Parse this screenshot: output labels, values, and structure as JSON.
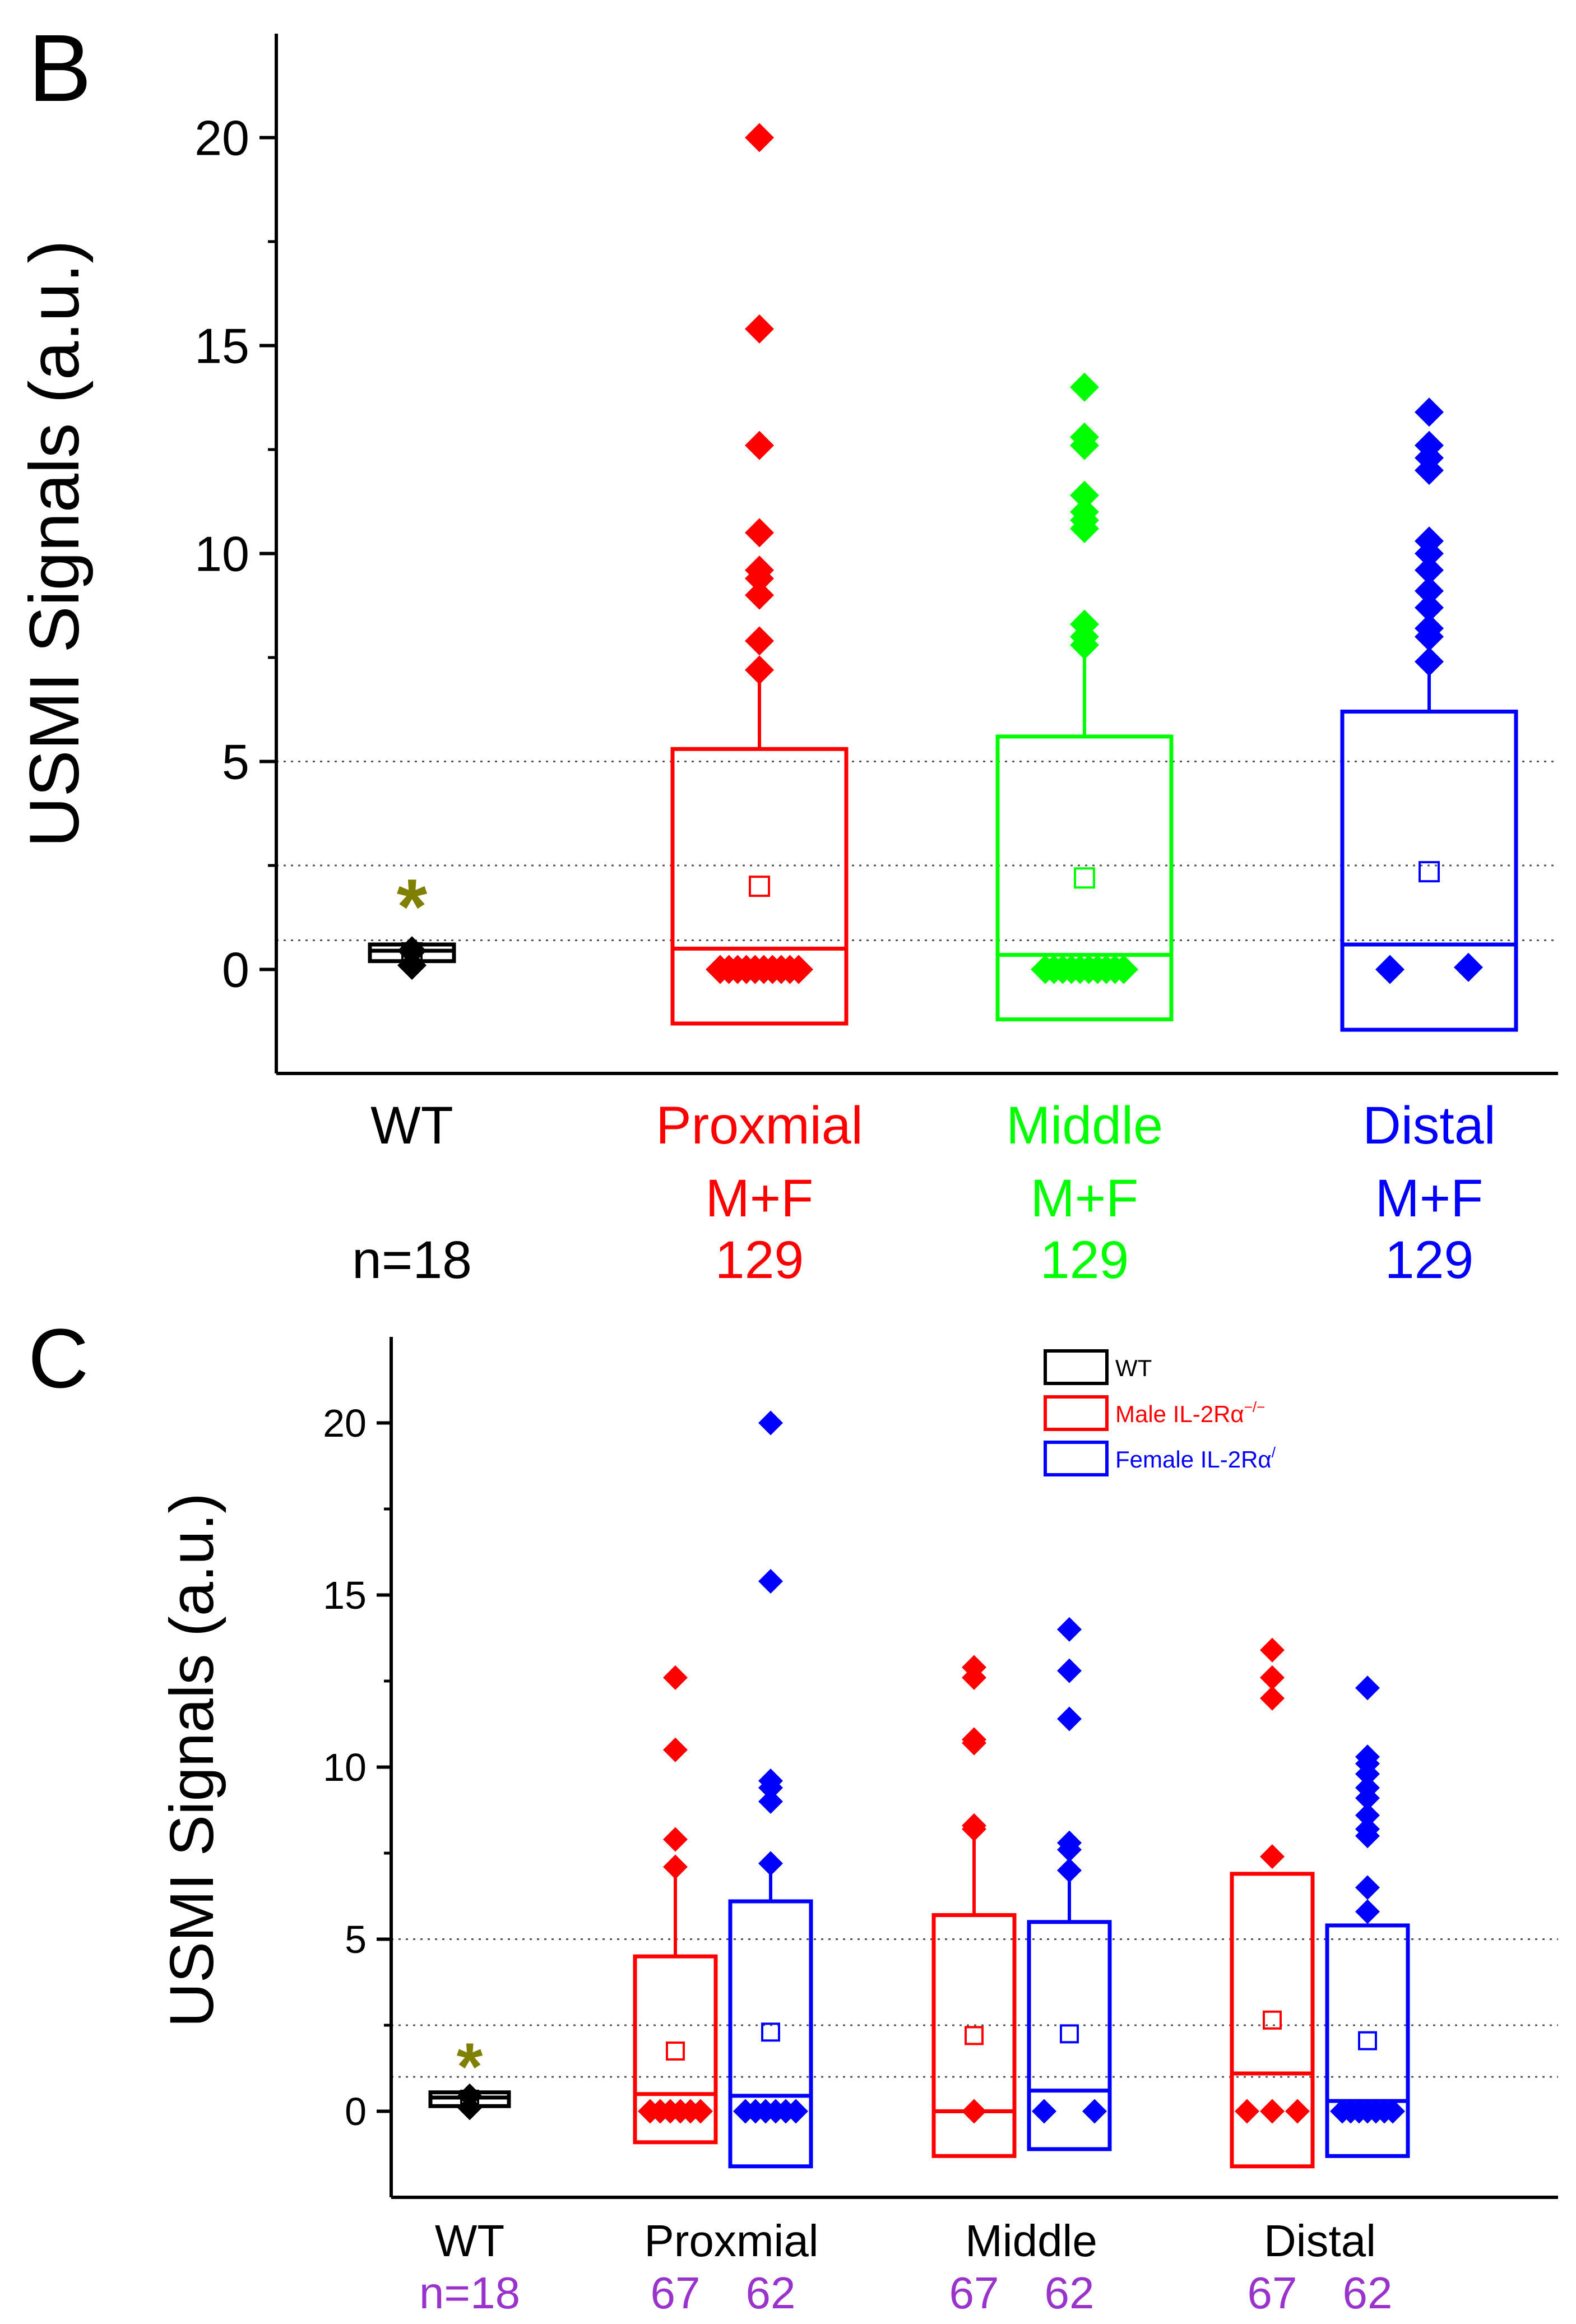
{
  "chart_data": [
    {
      "panel": "B",
      "type": "box",
      "ylabel": "USMI Signals (a.u.)",
      "ylim": [
        -2.5,
        22.5
      ],
      "yticks": [
        0,
        5,
        10,
        15,
        20
      ],
      "reference_lines": [
        0.7,
        2.5,
        5.0
      ],
      "categories": [
        {
          "label": "WT",
          "sub": "",
          "n": "n=18",
          "color": "#000000",
          "box": {
            "q1": 0.2,
            "median": 0.45,
            "q3": 0.6,
            "whisker_low": 0.2,
            "whisker_high": 0.6,
            "mean": 0.4
          },
          "points": [
            0.1,
            0.45
          ],
          "star": "*",
          "star_y": 1.9
        },
        {
          "label": "Proxmial",
          "sub": "M+F",
          "n": "129",
          "color": "#ff0000",
          "box": {
            "q1": -1.3,
            "median": 0.5,
            "q3": 5.3,
            "whisker_low": -1.3,
            "whisker_high": 7.2,
            "mean": 2.0
          },
          "points": [
            20.0,
            15.4,
            12.6,
            10.5,
            9.6,
            9.4,
            9.0,
            7.9,
            7.2,
            0,
            0,
            0,
            0,
            0,
            0,
            0,
            0,
            0,
            0
          ]
        },
        {
          "label": "Middle",
          "sub": "M+F",
          "n": "129",
          "color": "#00ff00",
          "box": {
            "q1": -1.2,
            "median": 0.35,
            "q3": 5.6,
            "whisker_low": -1.2,
            "whisker_high": 7.6,
            "mean": 2.2
          },
          "points": [
            14.0,
            12.8,
            12.6,
            11.4,
            11.0,
            10.8,
            10.6,
            8.3,
            8.0,
            7.8,
            0,
            0,
            0,
            0,
            0,
            0,
            0,
            0,
            0,
            0
          ]
        },
        {
          "label": "Distal",
          "sub": "M+F",
          "n": "129",
          "color": "#0000ff",
          "box": {
            "q1": -1.45,
            "median": 0.6,
            "q3": 6.2,
            "whisker_low": -1.45,
            "whisker_high": 7.4,
            "mean": 2.35
          },
          "points": [
            13.4,
            12.6,
            12.3,
            12.0,
            10.3,
            10.0,
            9.6,
            9.1,
            8.7,
            8.2,
            8.0,
            7.4,
            0.0,
            0.05
          ]
        }
      ]
    },
    {
      "panel": "C",
      "type": "box",
      "ylabel": "USMI Signals (a.u.)",
      "ylim": [
        -2.5,
        22.5
      ],
      "yticks": [
        0,
        5,
        10,
        15,
        20
      ],
      "reference_lines": [
        1.0,
        2.5,
        5.0
      ],
      "legend": [
        {
          "label": "WT",
          "color": "#000000"
        },
        {
          "label": "Male IL-2Rα",
          "sup": "−/−",
          "color": "#ff0000"
        },
        {
          "label": "Female IL-2Rα",
          "sup": "/",
          "color": "#0000ff"
        }
      ],
      "groups": [
        {
          "label": "WT",
          "n": [
            "n=18"
          ]
        },
        {
          "label": "Proxmial",
          "n": [
            "67",
            "62"
          ]
        },
        {
          "label": "Middle",
          "n": [
            "67",
            "62"
          ]
        },
        {
          "label": "Distal",
          "n": [
            "67",
            "62"
          ]
        }
      ],
      "boxes": [
        {
          "group": "WT",
          "series": "WT",
          "color": "#000000",
          "box": {
            "q1": 0.15,
            "median": 0.4,
            "q3": 0.55,
            "whisker_low": 0.15,
            "whisker_high": 0.55,
            "mean": 0.35
          },
          "points": [
            0.1,
            0.45
          ],
          "star": "*",
          "star_y": 1.7
        },
        {
          "group": "Proxmial",
          "series": "Male",
          "color": "#ff0000",
          "box": {
            "q1": -0.9,
            "median": 0.5,
            "q3": 4.5,
            "whisker_low": -0.9,
            "whisker_high": 7.1,
            "mean": 1.75
          },
          "points": [
            12.6,
            10.5,
            7.9,
            7.1,
            0,
            0,
            0,
            0,
            0,
            0
          ]
        },
        {
          "group": "Proxmial",
          "series": "Female",
          "color": "#0000ff",
          "box": {
            "q1": -1.6,
            "median": 0.45,
            "q3": 6.1,
            "whisker_low": -1.6,
            "whisker_high": 7.2,
            "mean": 2.3
          },
          "points": [
            20.0,
            15.4,
            9.6,
            9.4,
            9.0,
            7.2,
            0,
            0,
            0,
            0,
            0,
            0
          ]
        },
        {
          "group": "Middle",
          "series": "Male",
          "color": "#ff0000",
          "box": {
            "q1": -1.3,
            "median": 0.0,
            "q3": 5.7,
            "whisker_low": -1.3,
            "whisker_high": 8.2,
            "mean": 2.2
          },
          "points": [
            12.9,
            12.6,
            10.8,
            10.7,
            8.3,
            8.2,
            0.0
          ]
        },
        {
          "group": "Middle",
          "series": "Female",
          "color": "#0000ff",
          "box": {
            "q1": -1.1,
            "median": 0.6,
            "q3": 5.5,
            "whisker_low": -1.1,
            "whisker_high": 7.0,
            "mean": 2.25
          },
          "points": [
            14.0,
            12.8,
            11.4,
            7.8,
            7.6,
            7.0,
            0.0,
            0.0
          ]
        },
        {
          "group": "Distal",
          "series": "Male",
          "color": "#ff0000",
          "box": {
            "q1": -1.6,
            "median": 1.1,
            "q3": 6.9,
            "whisker_low": -1.6,
            "whisker_high": 6.9,
            "mean": 2.65
          },
          "points": [
            13.4,
            12.6,
            12.0,
            7.4,
            0,
            0,
            0
          ]
        },
        {
          "group": "Distal",
          "series": "Female",
          "color": "#0000ff",
          "box": {
            "q1": -1.3,
            "median": 0.3,
            "q3": 5.4,
            "whisker_low": -1.3,
            "whisker_high": 5.4,
            "mean": 2.05
          },
          "points": [
            12.3,
            10.3,
            10.1,
            9.8,
            9.4,
            9.1,
            8.6,
            8.2,
            8.0,
            6.5,
            5.8,
            0,
            0,
            0,
            0,
            0,
            0,
            0
          ]
        }
      ]
    }
  ]
}
